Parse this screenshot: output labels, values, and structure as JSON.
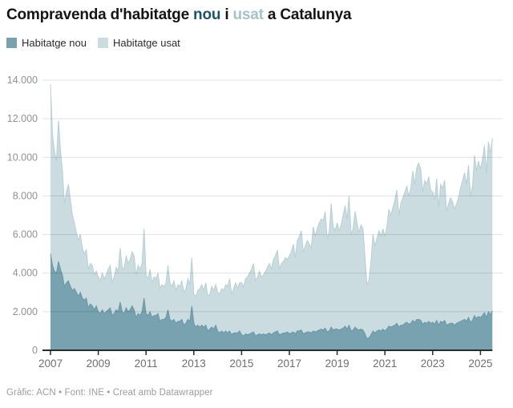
{
  "title": {
    "pre": "Compravenda d'habitatge ",
    "nou": "nou",
    "mid": " i ",
    "usat": "usat",
    "post": " a Catalunya"
  },
  "legend": {
    "items": [
      {
        "label": "Habitatge nou",
        "color": "#78a2b0"
      },
      {
        "label": "Habitatge usat",
        "color": "#cadce0"
      }
    ]
  },
  "footer": {
    "credit": "Gràfic: ACN • Font: INE • Creat amb Datawrapper"
  },
  "colors": {
    "nou_fill": "#78a2b0",
    "nou_edge": "#6997a7",
    "usat_fill": "#cadce0",
    "usat_edge": "#b7cfd6",
    "title_nou": "#1d5468",
    "title_usat": "#a2c3cc",
    "axis": "#2b2b2b",
    "grid": "rgba(0,0,0,0.12)",
    "y_label": "#919191",
    "x_label": "#6f6f6f"
  },
  "chart_data": {
    "type": "area",
    "stacked": true,
    "title": "Compravenda d'habitatge nou i usat a Catalunya",
    "x_start_year": 2007,
    "x_interval": "monthly",
    "x_end": "2025-07",
    "ylim": [
      0,
      14000
    ],
    "grid": true,
    "legend_position": "top-left",
    "x_ticks": [
      "2007",
      "2009",
      "2011",
      "2013",
      "2015",
      "2017",
      "2019",
      "2021",
      "2023",
      "2025"
    ],
    "y_ticks": [
      {
        "value": 0,
        "label": "0"
      },
      {
        "value": 2000,
        "label": "2.000"
      },
      {
        "value": 4000,
        "label": "4.000"
      },
      {
        "value": 6000,
        "label": "6.000"
      },
      {
        "value": 8000,
        "label": "8.000"
      },
      {
        "value": 10000,
        "label": "10.000"
      },
      {
        "value": 12000,
        "label": "12.000"
      },
      {
        "value": 14000,
        "label": "14.000"
      }
    ],
    "series": [
      {
        "name": "Habitatge nou",
        "color": "#78a2b0",
        "values": [
          5000,
          4400,
          4100,
          4000,
          4600,
          4200,
          3900,
          3300,
          3500,
          3600,
          3300,
          3100,
          3200,
          3000,
          2800,
          3000,
          2700,
          2600,
          2700,
          2200,
          2400,
          2300,
          2100,
          2300,
          2000,
          1900,
          2100,
          1900,
          2000,
          2100,
          2200,
          1800,
          1900,
          2100,
          2000,
          2500,
          2000,
          1900,
          2200,
          2000,
          2100,
          2300,
          2100,
          1700,
          1900,
          1800,
          2000,
          2700,
          1900,
          1800,
          2000,
          1700,
          1800,
          1800,
          1900,
          1500,
          1600,
          1600,
          1700,
          2100,
          1600,
          1500,
          1600,
          1400,
          1500,
          1500,
          1600,
          1300,
          1400,
          1600,
          1500,
          2300,
          1400,
          1200,
          1300,
          1200,
          1300,
          1200,
          1300,
          1000,
          1100,
          1200,
          1100,
          1300,
          1000,
          900,
          1000,
          900,
          1000,
          900,
          1000,
          800,
          900,
          900,
          900,
          1000,
          800,
          750,
          850,
          800,
          850,
          900,
          950,
          750,
          800,
          850,
          800,
          850,
          800,
          850,
          900,
          800,
          900,
          950,
          1000,
          800,
          850,
          900,
          900,
          950,
          850,
          900,
          950,
          850,
          1000,
          1000,
          1050,
          850,
          900,
          950,
          950,
          900,
          1000,
          950,
          1000,
          1050,
          1100,
          1050,
          1150,
          950,
          1000,
          1200,
          1050,
          1100,
          1100,
          1050,
          1100,
          1150,
          1250,
          1100,
          1300,
          1000,
          1050,
          1200,
          1100,
          1050,
          1100,
          1050,
          850,
          600,
          650,
          800,
          1000,
          900,
          1000,
          1050,
          1000,
          1100,
          1000,
          1100,
          1250,
          1200,
          1250,
          1300,
          1400,
          1200,
          1300,
          1300,
          1400,
          1450,
          1350,
          1400,
          1550,
          1450,
          1600,
          1600,
          1550,
          1350,
          1450,
          1400,
          1500,
          1400,
          1450,
          1350,
          1550,
          1300,
          1500,
          1450,
          1550,
          1300,
          1350,
          1400,
          1400,
          1300,
          1400,
          1450,
          1500,
          1550,
          1600,
          1500,
          1700,
          1450,
          1550,
          1800,
          1650,
          1750,
          1700,
          1800,
          1950,
          1700,
          2000,
          1850,
          2050
        ]
      },
      {
        "name": "Habitatge usat",
        "color": "#cadce0",
        "values": [
          8800,
          6800,
          6200,
          5800,
          7300,
          6200,
          5400,
          4300,
          4700,
          5000,
          4500,
          3900,
          3400,
          3100,
          2900,
          3000,
          2600,
          2400,
          2500,
          2000,
          2100,
          2100,
          1800,
          1800,
          1800,
          1700,
          1900,
          1800,
          1900,
          2100,
          2200,
          1700,
          1900,
          2200,
          2100,
          2800,
          2300,
          2300,
          2700,
          2500,
          2600,
          2800,
          2800,
          2200,
          2500,
          2400,
          2500,
          3600,
          2000,
          1900,
          2200,
          1800,
          2000,
          1900,
          2100,
          1700,
          1800,
          1700,
          1800,
          2300,
          1900,
          1800,
          2000,
          1700,
          1900,
          1800,
          2000,
          1700,
          1800,
          2100,
          1900,
          2500,
          1500,
          1600,
          1800,
          2000,
          2100,
          1900,
          2200,
          1800,
          1800,
          2100,
          2000,
          2100,
          2000,
          2000,
          2200,
          2200,
          2400,
          2400,
          2700,
          2100,
          2300,
          2600,
          2300,
          2500,
          2700,
          2550,
          2850,
          3000,
          3150,
          3300,
          3550,
          2850,
          3000,
          3250,
          3000,
          3050,
          3300,
          3450,
          3600,
          3400,
          3800,
          3950,
          4200,
          3400,
          3650,
          3700,
          3900,
          3750,
          4050,
          4200,
          4550,
          3950,
          4700,
          4900,
          5150,
          4250,
          4500,
          4750,
          4550,
          4400,
          5400,
          4950,
          5300,
          5550,
          5700,
          5650,
          6050,
          4850,
          5100,
          6400,
          5350,
          5100,
          5500,
          5150,
          5400,
          5850,
          6250,
          5700,
          6700,
          5000,
          5250,
          6000,
          5500,
          5050,
          5400,
          5250,
          3950,
          2800,
          2950,
          3800,
          5000,
          4500,
          4800,
          5150,
          4900,
          5200,
          4900,
          5300,
          6050,
          5800,
          6150,
          6500,
          6900,
          5800,
          6300,
          6600,
          6800,
          7050,
          6650,
          7000,
          7750,
          7150,
          7900,
          8100,
          7850,
          6850,
          7350,
          7200,
          7500,
          6900,
          6750,
          6450,
          7350,
          6100,
          7100,
          6950,
          7250,
          5900,
          6250,
          6500,
          6300,
          6000,
          6200,
          6450,
          6900,
          7250,
          7600,
          7100,
          7900,
          6550,
          6950,
          8300,
          7650,
          8050,
          7700,
          8100,
          8650,
          7500,
          8800,
          8350,
          8950
        ]
      }
    ]
  }
}
